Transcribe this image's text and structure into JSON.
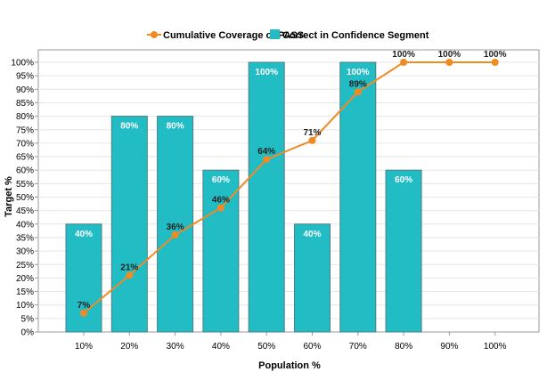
{
  "colors": {
    "bar": "#22bcc4",
    "bar_stroke": "#4a7f84",
    "line": "#f08a24",
    "grid": "#e6e6e6",
    "axis": "#999999"
  },
  "chart_data": {
    "type": "bar",
    "legend_position": "top-center",
    "grid": true,
    "xlabel": "Population %",
    "ylabel": "Target %",
    "ylim": [
      0,
      100
    ],
    "ytick_step": 5,
    "categories": [
      "10%",
      "20%",
      "30%",
      "40%",
      "50%",
      "60%",
      "70%",
      "80%",
      "90%",
      "100%"
    ],
    "series": [
      {
        "name": "Cumulative Coverage of PASS",
        "type": "line",
        "values": [
          7,
          21,
          36,
          46,
          64,
          71,
          89,
          100,
          100,
          100
        ],
        "labels": [
          "7%",
          "21%",
          "36%",
          "46%",
          "64%",
          "71%",
          "89%",
          "100%",
          "100%",
          "100%"
        ]
      },
      {
        "name": "Correct in Confidence Segment",
        "type": "bar",
        "values": [
          40,
          80,
          80,
          60,
          100,
          40,
          100,
          60,
          null,
          null
        ],
        "labels": [
          "40%",
          "80%",
          "80%",
          "60%",
          "100%",
          "40%",
          "100%",
          "60%",
          "",
          ""
        ]
      }
    ]
  }
}
